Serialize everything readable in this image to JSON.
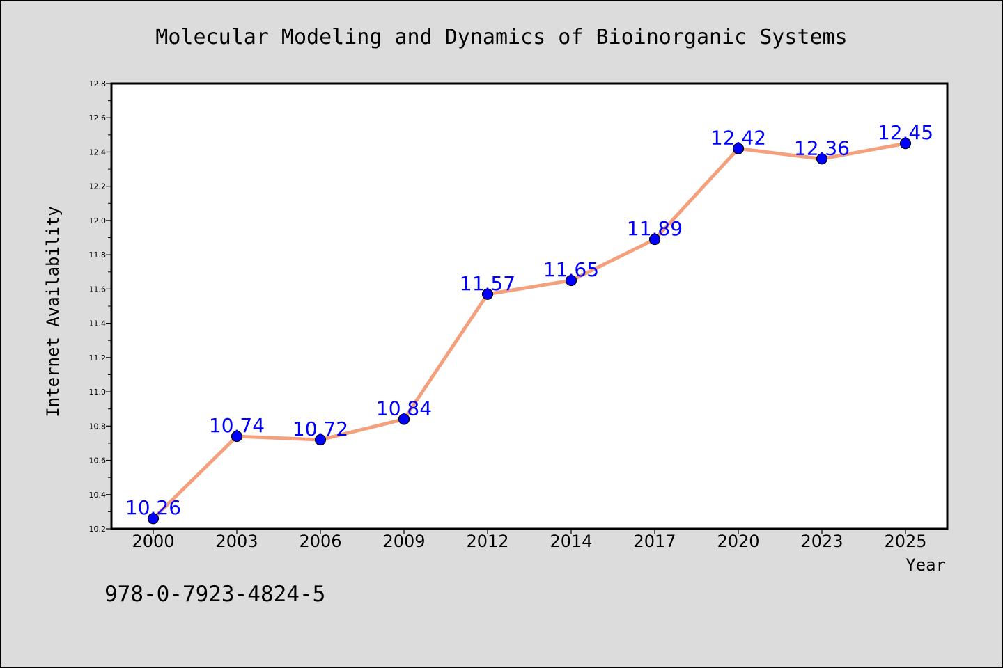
{
  "chart_data": {
    "type": "line",
    "title": "Molecular Modeling and Dynamics of Bioinorganic Systems",
    "xlabel": "Year",
    "ylabel": "Internet Availability",
    "categories": [
      "2000",
      "2003",
      "2006",
      "2009",
      "2012",
      "2014",
      "2017",
      "2020",
      "2023",
      "2025"
    ],
    "values": [
      10.26,
      10.74,
      10.72,
      10.84,
      11.57,
      11.65,
      11.89,
      12.42,
      12.36,
      12.45
    ],
    "data_labels": [
      "10.26",
      "10.74",
      "10.72",
      "10.84",
      "11.57",
      "11.65",
      "11.89",
      "12.42",
      "12.36",
      "12.45"
    ],
    "ylim": [
      10.2,
      12.8
    ],
    "yticks": [
      "10.2",
      "10.4",
      "10.6",
      "10.8",
      "11.0",
      "11.2",
      "11.4",
      "11.6",
      "11.8",
      "12.0",
      "12.2",
      "12.4",
      "12.6",
      "12.8"
    ],
    "grid": false,
    "colors": {
      "line": "#f4a07c",
      "marker": "#0000ff",
      "label": "#0000ff",
      "plot_bg": "#ffffff",
      "page_bg": "#dcdcdc"
    }
  },
  "footer": {
    "isbn": "978-0-7923-4824-5"
  }
}
